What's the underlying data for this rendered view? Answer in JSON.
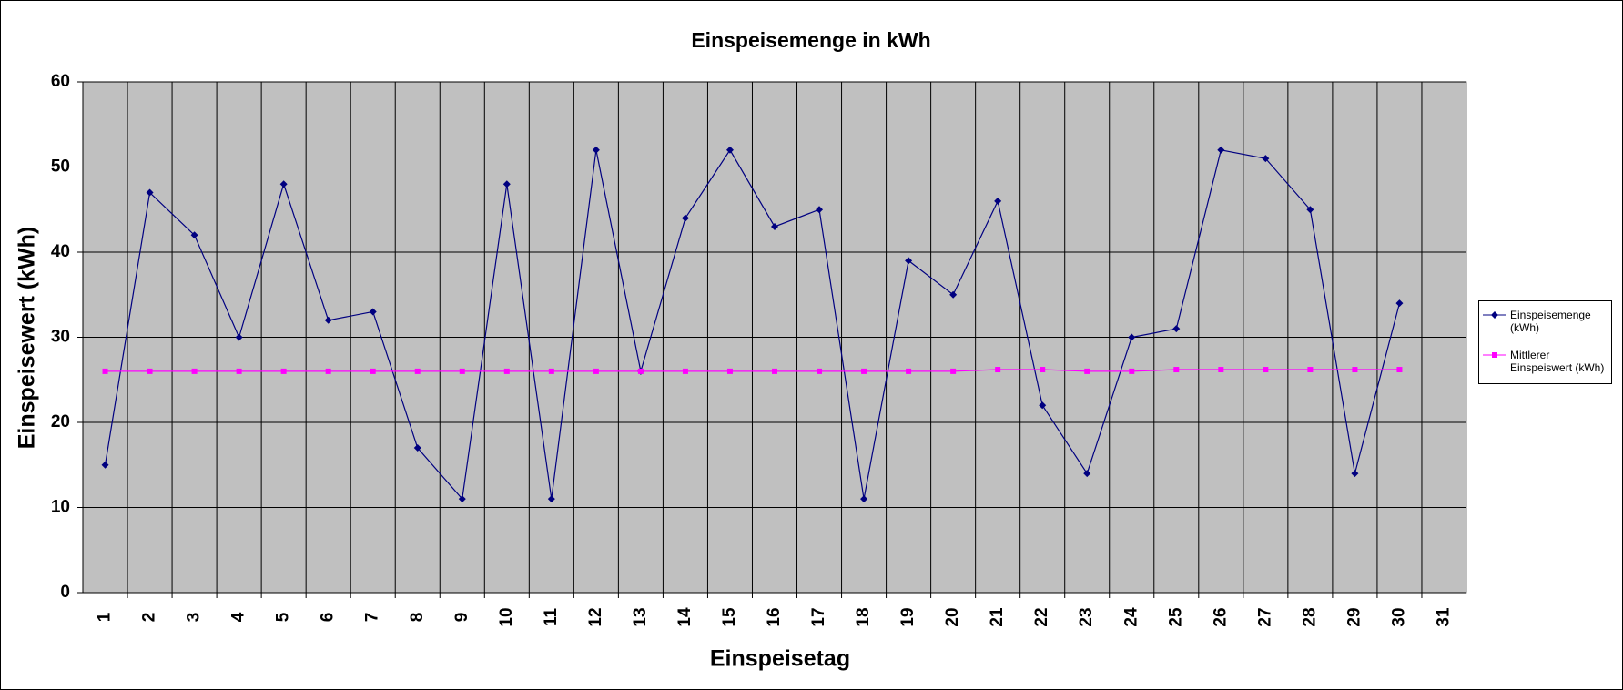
{
  "chart_data": {
    "type": "line",
    "title": "Einspeisemenge in kWh",
    "x_label": "Einspeisetag",
    "y_label": "Einspeisewert  (kWh)",
    "categories": [
      "1",
      "2",
      "3",
      "4",
      "5",
      "6",
      "7",
      "8",
      "9",
      "10",
      "11",
      "12",
      "13",
      "14",
      "15",
      "16",
      "17",
      "18",
      "19",
      "20",
      "21",
      "22",
      "23",
      "24",
      "25",
      "26",
      "27",
      "28",
      "29",
      "30",
      "31"
    ],
    "series": [
      {
        "name": "Einspeisemenge (kWh)",
        "color": "#000080",
        "marker": "diamond",
        "values": [
          15,
          47,
          42,
          30,
          48,
          32,
          33,
          17,
          11,
          48,
          11,
          52,
          26,
          44,
          52,
          43,
          45,
          11,
          39,
          35,
          46,
          22,
          14,
          30,
          31,
          52,
          51,
          45,
          14,
          34,
          null
        ]
      },
      {
        "name": "Mittlerer Einspeiswert (kWh)",
        "color": "#ff00ff",
        "marker": "square",
        "values": [
          26,
          26,
          26,
          26,
          26,
          26,
          26,
          26,
          26,
          26,
          26,
          26,
          26,
          26,
          26,
          26,
          26,
          26,
          26,
          26,
          26.2,
          26.2,
          26,
          26,
          26.2,
          26.2,
          26.2,
          26.2,
          26.2,
          26.2,
          null
        ]
      }
    ],
    "ylim": [
      0,
      60
    ],
    "yticks": [
      0,
      10,
      20,
      30,
      40,
      50,
      60
    ],
    "grid": true,
    "legend": "right",
    "plot_background": "#c0c0c0"
  }
}
